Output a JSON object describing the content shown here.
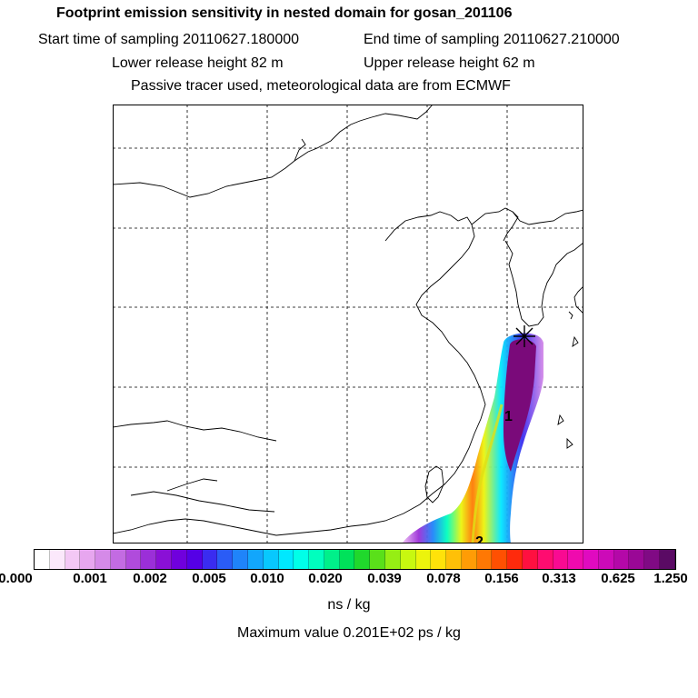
{
  "header": {
    "title": "Footprint emission sensitivity in nested domain for gosan_201106",
    "start_time": "Start time of sampling 20110627.180000",
    "end_time": "End time of sampling 20110627.210000",
    "lower_release": "Lower release height   82 m",
    "upper_release": "Upper release height   62 m",
    "tracer": "Passive tracer used, meteorological data are from ECMWF"
  },
  "map": {
    "station_marker": "gosan-station-star",
    "plume_labels": [
      "1",
      "2"
    ]
  },
  "colorbar": {
    "tick_labels": [
      "0.000",
      "0.001",
      "0.002",
      "0.005",
      "0.010",
      "0.020",
      "0.039",
      "0.078",
      "0.156",
      "0.313",
      "0.625",
      "1.250"
    ],
    "colors": [
      "#ffffff",
      "#fbe8fb",
      "#f3c8f5",
      "#e7a6ef",
      "#d58ae8",
      "#c36be2",
      "#b04bdc",
      "#9b2fd8",
      "#8a10d6",
      "#7000dd",
      "#5500e6",
      "#3a2cf0",
      "#2a5cf6",
      "#1f84fa",
      "#12a6fc",
      "#08c8fe",
      "#00e8ff",
      "#00ffe8",
      "#00ffbe",
      "#00f08a",
      "#00e25a",
      "#20d82c",
      "#5ae01a",
      "#96ee14",
      "#c8f810",
      "#ecf40c",
      "#ffe20a",
      "#ffc008",
      "#ff9c06",
      "#ff7804",
      "#ff5002",
      "#ff2a0c",
      "#ff1040",
      "#ff0c70",
      "#f90a92",
      "#ef0aae",
      "#e00ac0",
      "#cc0ab8",
      "#b408a8",
      "#9a0896",
      "#800a84",
      "#5a0a64"
    ],
    "units": "ns / kg",
    "max_value": "Maximum value  0.201E+02 ps / kg"
  }
}
